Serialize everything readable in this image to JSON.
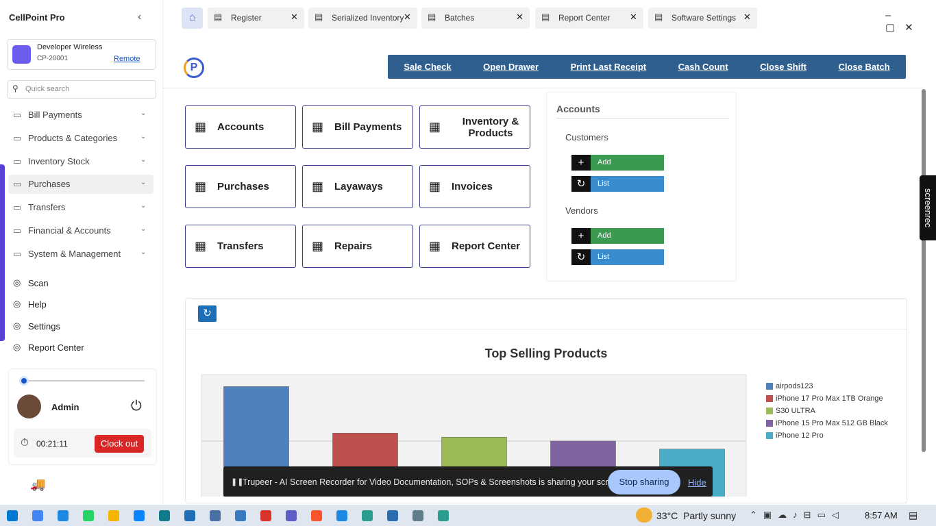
{
  "app": {
    "title": "CellPoint Pro"
  },
  "tabs": [
    "Register",
    "Serialized Inventory",
    "Batches",
    "Report Center",
    "Software Settings"
  ],
  "store": {
    "name": "Developer Wireless",
    "code": "CP-20001",
    "link": "Remote"
  },
  "search_placeholder": "Quick search",
  "menu": [
    "Bill Payments",
    "Products & Categories",
    "Inventory Stock",
    "Purchases",
    "Transfers",
    "Financial & Accounts",
    "System & Management"
  ],
  "links": [
    "Scan",
    "Help",
    "Settings",
    "Report Center"
  ],
  "user": {
    "name": "Admin",
    "timer": "00:21:11",
    "clock_out": "Clock out"
  },
  "actions": [
    "Sale Check",
    "Open Drawer",
    "Print Last Receipt",
    "Cash Count",
    "Close Shift",
    "Close Batch"
  ],
  "tiles": [
    "Accounts",
    "Bill Payments",
    "Inventory & Products",
    "Purchases",
    "Layaways",
    "Invoices",
    "Transfers",
    "Repairs",
    "Report Center"
  ],
  "accounts_panel": {
    "title": "Accounts",
    "groups": [
      {
        "label": "Customers",
        "buttons": [
          "Add",
          "List"
        ]
      },
      {
        "label": "Vendors",
        "buttons": [
          "Add",
          "List"
        ]
      }
    ]
  },
  "chart_data": {
    "type": "bar",
    "title": "Top Selling Products",
    "categories": [
      "airpods123",
      "iPhone 17 Pro Max 1TB Orange",
      "S30 ULTRA",
      "iPhone 15 Pro Max 512 GB Black",
      "iPhone 12 Pro"
    ],
    "values": [
      9.1,
      5.6,
      5.3,
      5.0,
      4.4
    ],
    "colors": [
      "#4f81bd",
      "#c0504d",
      "#9bbb59",
      "#8064a2",
      "#4bacc6"
    ],
    "ylim": [
      0,
      10
    ]
  },
  "screenrec": "screenrec",
  "sharing": {
    "text": "Trupeer - AI Screen Recorder for Video Documentation, SOPs & Screenshots is sharing your screen.",
    "stop": "Stop sharing",
    "hide": "Hide"
  },
  "taskbar": {
    "weather": "33°C  Partly sunny",
    "time": "8:57 AM"
  }
}
